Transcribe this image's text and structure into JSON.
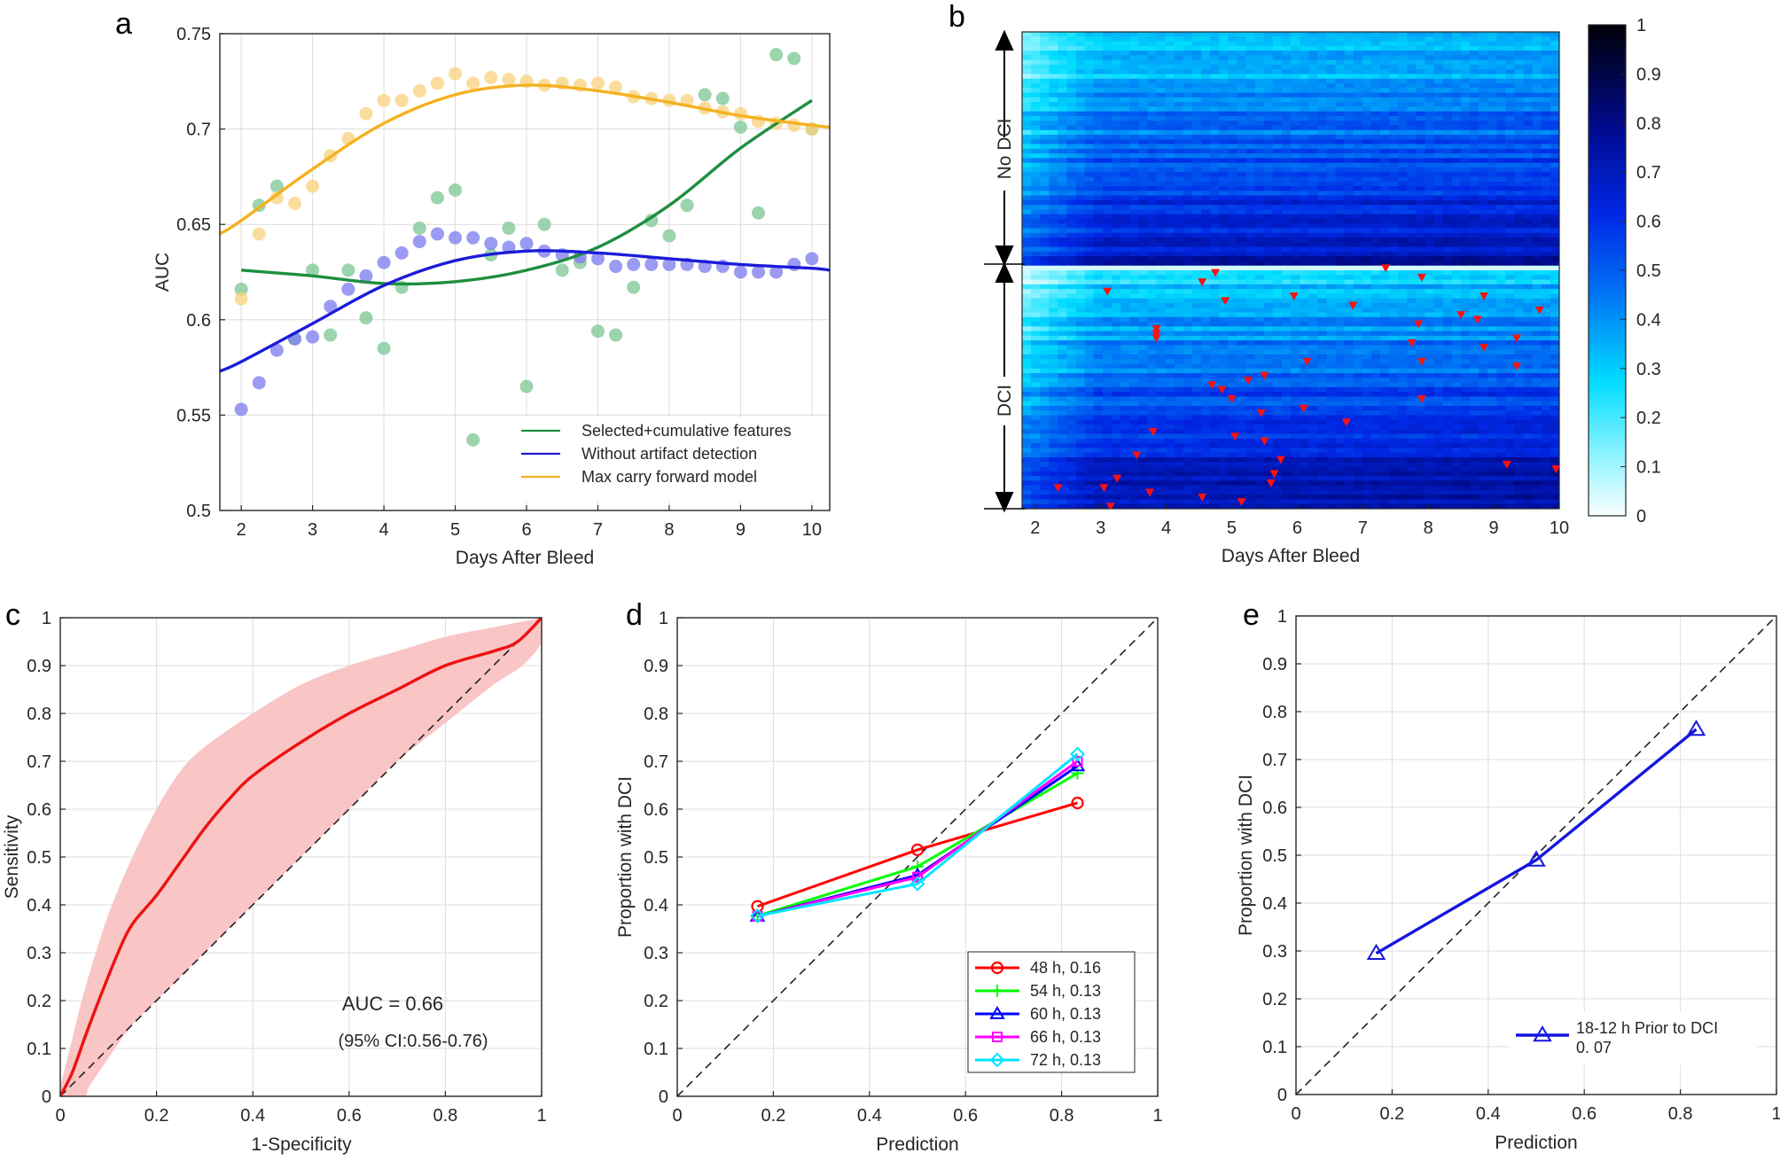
{
  "chart_data": [
    {
      "panel": "a",
      "type": "scatter",
      "xlabel": "Days After Bleed",
      "ylabel": "AUC",
      "xlim": [
        1.7,
        10.25
      ],
      "ylim": [
        0.5,
        0.75
      ],
      "xticks": [
        2,
        3,
        4,
        5,
        6,
        7,
        8,
        9,
        10
      ],
      "yticks": [
        0.5,
        0.55,
        0.6,
        0.65,
        0.7,
        0.75
      ],
      "grid": true,
      "legend_position": "bottom-right",
      "series": [
        {
          "name": "Selected+cumulative features",
          "color": "#1e8f3e",
          "points": [
            [
              2,
              0.616
            ],
            [
              2.25,
              0.66
            ],
            [
              2.5,
              0.67
            ],
            [
              2.75,
              0.59
            ],
            [
              3,
              0.626
            ],
            [
              3.25,
              0.592
            ],
            [
              3.5,
              0.626
            ],
            [
              3.75,
              0.601
            ],
            [
              4,
              0.585
            ],
            [
              4.25,
              0.617
            ],
            [
              4.5,
              0.648
            ],
            [
              4.75,
              0.664
            ],
            [
              5,
              0.668
            ],
            [
              5.25,
              0.537
            ],
            [
              5.5,
              0.634
            ],
            [
              5.75,
              0.648
            ],
            [
              6,
              0.565
            ],
            [
              6.25,
              0.65
            ],
            [
              6.5,
              0.626
            ],
            [
              6.75,
              0.63
            ],
            [
              7,
              0.594
            ],
            [
              7.25,
              0.592
            ],
            [
              7.5,
              0.617
            ],
            [
              7.75,
              0.652
            ],
            [
              8,
              0.644
            ],
            [
              8.25,
              0.66
            ],
            [
              8.5,
              0.718
            ],
            [
              8.75,
              0.716
            ],
            [
              9,
              0.701
            ],
            [
              9.25,
              0.656
            ],
            [
              9.5,
              0.739
            ],
            [
              9.75,
              0.737
            ],
            [
              10,
              0.7
            ]
          ],
          "fit": [
            [
              2,
              0.626
            ],
            [
              3,
              0.623
            ],
            [
              4,
              0.619
            ],
            [
              5,
              0.62
            ],
            [
              6,
              0.626
            ],
            [
              7,
              0.638
            ],
            [
              8,
              0.66
            ],
            [
              9,
              0.69
            ],
            [
              10,
              0.715
            ]
          ]
        },
        {
          "name": "Without artifact detection",
          "color": "#1c1cd9",
          "points": [
            [
              2,
              0.553
            ],
            [
              2.25,
              0.567
            ],
            [
              2.5,
              0.584
            ],
            [
              2.75,
              0.59
            ],
            [
              3,
              0.591
            ],
            [
              3.25,
              0.607
            ],
            [
              3.5,
              0.616
            ],
            [
              3.75,
              0.623
            ],
            [
              4,
              0.63
            ],
            [
              4.25,
              0.635
            ],
            [
              4.5,
              0.641
            ],
            [
              4.75,
              0.645
            ],
            [
              5,
              0.643
            ],
            [
              5.25,
              0.643
            ],
            [
              5.5,
              0.64
            ],
            [
              5.75,
              0.638
            ],
            [
              6,
              0.64
            ],
            [
              6.25,
              0.636
            ],
            [
              6.5,
              0.634
            ],
            [
              6.75,
              0.633
            ],
            [
              7,
              0.632
            ],
            [
              7.25,
              0.628
            ],
            [
              7.5,
              0.629
            ],
            [
              7.75,
              0.629
            ],
            [
              8,
              0.629
            ],
            [
              8.25,
              0.629
            ],
            [
              8.5,
              0.628
            ],
            [
              8.75,
              0.628
            ],
            [
              9,
              0.625
            ],
            [
              9.25,
              0.625
            ],
            [
              9.5,
              0.625
            ],
            [
              9.75,
              0.629
            ],
            [
              10,
              0.632
            ]
          ],
          "fit": [
            [
              1.7,
              0.573
            ],
            [
              2,
              0.578
            ],
            [
              3,
              0.598
            ],
            [
              4,
              0.618
            ],
            [
              5,
              0.631
            ],
            [
              6,
              0.636
            ],
            [
              7,
              0.635
            ],
            [
              8,
              0.632
            ],
            [
              9,
              0.629
            ],
            [
              10,
              0.627
            ],
            [
              10.25,
              0.626
            ]
          ]
        },
        {
          "name": "Max carry forward model",
          "color": "#f5b120",
          "points": [
            [
              2,
              0.611
            ],
            [
              2.25,
              0.645
            ],
            [
              2.5,
              0.664
            ],
            [
              2.75,
              0.661
            ],
            [
              3,
              0.67
            ],
            [
              3.25,
              0.686
            ],
            [
              3.5,
              0.695
            ],
            [
              3.75,
              0.708
            ],
            [
              4,
              0.715
            ],
            [
              4.25,
              0.715
            ],
            [
              4.5,
              0.72
            ],
            [
              4.75,
              0.724
            ],
            [
              5,
              0.729
            ],
            [
              5.25,
              0.724
            ],
            [
              5.5,
              0.727
            ],
            [
              5.75,
              0.726
            ],
            [
              6,
              0.725
            ],
            [
              6.25,
              0.723
            ],
            [
              6.5,
              0.724
            ],
            [
              6.75,
              0.723
            ],
            [
              7,
              0.724
            ],
            [
              7.25,
              0.722
            ],
            [
              7.5,
              0.717
            ],
            [
              7.75,
              0.716
            ],
            [
              8,
              0.715
            ],
            [
              8.25,
              0.715
            ],
            [
              8.5,
              0.711
            ],
            [
              8.75,
              0.709
            ],
            [
              9,
              0.708
            ],
            [
              9.25,
              0.704
            ],
            [
              9.5,
              0.703
            ],
            [
              9.75,
              0.702
            ],
            [
              10,
              0.7
            ]
          ],
          "fit": [
            [
              1.7,
              0.645
            ],
            [
              2,
              0.652
            ],
            [
              3,
              0.679
            ],
            [
              4,
              0.703
            ],
            [
              5,
              0.718
            ],
            [
              6,
              0.723
            ],
            [
              7,
              0.72
            ],
            [
              8,
              0.714
            ],
            [
              9,
              0.707
            ],
            [
              10,
              0.702
            ],
            [
              10.25,
              0.701
            ]
          ]
        }
      ]
    },
    {
      "panel": "b",
      "type": "heatmap",
      "xlabel": "Days After Bleed",
      "xlim": [
        1.8,
        10
      ],
      "xticks": [
        2,
        3,
        4,
        5,
        6,
        7,
        8,
        9,
        10
      ],
      "colorbar_ticks": [
        0,
        0.1,
        0.2,
        0.3,
        0.4,
        0.5,
        0.6,
        0.7,
        0.8,
        0.9,
        1
      ],
      "group_labels": [
        "No DCI",
        "DCI"
      ],
      "rows_no_dci": 50,
      "rows_dci": 52,
      "events": [
        [
          7.35,
          0
        ],
        [
          4.75,
          1
        ],
        [
          7.9,
          2
        ],
        [
          4.55,
          3
        ],
        [
          3.1,
          5
        ],
        [
          5.95,
          6
        ],
        [
          4.9,
          7
        ],
        [
          6.85,
          8
        ],
        [
          8.85,
          6
        ],
        [
          9.7,
          9
        ],
        [
          8.5,
          10
        ],
        [
          8.75,
          11
        ],
        [
          7.85,
          12
        ],
        [
          3.85,
          13
        ],
        [
          3.85,
          14
        ],
        [
          3.85,
          15
        ],
        [
          9.35,
          15
        ],
        [
          7.75,
          16
        ],
        [
          8.85,
          17
        ],
        [
          6.15,
          20
        ],
        [
          7.9,
          20
        ],
        [
          9.35,
          21
        ],
        [
          5.5,
          23
        ],
        [
          5.25,
          24
        ],
        [
          4.7,
          25
        ],
        [
          4.85,
          26
        ],
        [
          5,
          28
        ],
        [
          7.9,
          28
        ],
        [
          6.1,
          30
        ],
        [
          5.45,
          31
        ],
        [
          6.75,
          33
        ],
        [
          3.8,
          35
        ],
        [
          5.05,
          36
        ],
        [
          5.5,
          37
        ],
        [
          3.55,
          40
        ],
        [
          5.75,
          41
        ],
        [
          9.2,
          42
        ],
        [
          9.95,
          43
        ],
        [
          5.65,
          44
        ],
        [
          5.6,
          46
        ],
        [
          3.25,
          45
        ],
        [
          2.35,
          47
        ],
        [
          3.05,
          47
        ],
        [
          3.75,
          48
        ],
        [
          4.55,
          49
        ],
        [
          5.15,
          50
        ],
        [
          3.15,
          51
        ]
      ]
    },
    {
      "panel": "c",
      "type": "line",
      "xlabel": "1-Specificity",
      "ylabel": "Sensitivity",
      "xlim": [
        0,
        1
      ],
      "ylim": [
        0,
        1
      ],
      "xticks": [
        0,
        0.2,
        0.4,
        0.6,
        0.8,
        1
      ],
      "yticks": [
        0,
        0.1,
        0.2,
        0.3,
        0.4,
        0.5,
        0.6,
        0.7,
        0.8,
        0.9,
        1
      ],
      "annotation": "AUC = 0.66",
      "annotation2": "(95% CI:0.56-0.76)",
      "roc": [
        [
          0,
          0
        ],
        [
          0.025,
          0.05
        ],
        [
          0.05,
          0.12
        ],
        [
          0.08,
          0.2
        ],
        [
          0.12,
          0.3
        ],
        [
          0.15,
          0.36
        ],
        [
          0.2,
          0.42
        ],
        [
          0.25,
          0.49
        ],
        [
          0.3,
          0.56
        ],
        [
          0.35,
          0.62
        ],
        [
          0.4,
          0.67
        ],
        [
          0.5,
          0.74
        ],
        [
          0.6,
          0.8
        ],
        [
          0.7,
          0.85
        ],
        [
          0.8,
          0.9
        ],
        [
          0.9,
          0.93
        ],
        [
          0.95,
          0.95
        ],
        [
          1,
          1
        ]
      ],
      "ci_upper": [
        [
          0,
          0.02
        ],
        [
          0.02,
          0.1
        ],
        [
          0.05,
          0.22
        ],
        [
          0.1,
          0.38
        ],
        [
          0.15,
          0.5
        ],
        [
          0.2,
          0.6
        ],
        [
          0.25,
          0.68
        ],
        [
          0.3,
          0.73
        ],
        [
          0.4,
          0.8
        ],
        [
          0.5,
          0.86
        ],
        [
          0.6,
          0.9
        ],
        [
          0.7,
          0.93
        ],
        [
          0.8,
          0.96
        ],
        [
          0.9,
          0.98
        ],
        [
          1,
          1
        ]
      ],
      "ci_lower": [
        [
          1,
          1
        ],
        [
          1,
          0.95
        ],
        [
          0.96,
          0.9
        ],
        [
          0.9,
          0.86
        ],
        [
          0.8,
          0.78
        ],
        [
          0.7,
          0.7
        ],
        [
          0.6,
          0.6
        ],
        [
          0.5,
          0.5
        ],
        [
          0.4,
          0.4
        ],
        [
          0.3,
          0.3
        ],
        [
          0.2,
          0.2
        ],
        [
          0.15,
          0.15
        ],
        [
          0.1,
          0.08
        ],
        [
          0.06,
          0.02
        ],
        [
          0.05,
          0
        ],
        [
          0,
          0
        ]
      ]
    },
    {
      "panel": "d",
      "type": "line",
      "xlabel": "Prediction",
      "ylabel": "Proportion with DCI",
      "xlim": [
        0,
        1
      ],
      "ylim": [
        0,
        1
      ],
      "xticks": [
        0,
        0.2,
        0.4,
        0.6,
        0.8,
        1
      ],
      "yticks": [
        0,
        0.1,
        0.2,
        0.3,
        0.4,
        0.5,
        0.6,
        0.7,
        0.8,
        0.9,
        1
      ],
      "legend_position": "bottom-right",
      "series": [
        {
          "name": "48 h, 0.16",
          "color": "#ff0000",
          "marker": "circle",
          "points": [
            [
              0.167,
              0.397
            ],
            [
              0.5,
              0.515
            ],
            [
              0.833,
              0.613
            ]
          ]
        },
        {
          "name": "54 h, 0.13",
          "color": "#00ff00",
          "marker": "plus",
          "points": [
            [
              0.167,
              0.377
            ],
            [
              0.5,
              0.48
            ],
            [
              0.833,
              0.675
            ]
          ]
        },
        {
          "name": "60 h, 0.13",
          "color": "#0000ff",
          "marker": "triangle",
          "points": [
            [
              0.167,
              0.376
            ],
            [
              0.5,
              0.462
            ],
            [
              0.833,
              0.69
            ]
          ]
        },
        {
          "name": "66 h, 0.13",
          "color": "#ff00ff",
          "marker": "square",
          "points": [
            [
              0.167,
              0.376
            ],
            [
              0.5,
              0.458
            ],
            [
              0.833,
              0.7
            ]
          ]
        },
        {
          "name": "72 h, 0.13",
          "color": "#00e5ff",
          "marker": "diamond",
          "points": [
            [
              0.167,
              0.377
            ],
            [
              0.5,
              0.444
            ],
            [
              0.833,
              0.715
            ]
          ]
        }
      ]
    },
    {
      "panel": "e",
      "type": "line",
      "xlabel": "Prediction",
      "ylabel": "Proportion with DCI",
      "xlim": [
        0,
        1
      ],
      "ylim": [
        0,
        1
      ],
      "xticks": [
        0,
        0.2,
        0.4,
        0.6,
        0.8,
        1
      ],
      "yticks": [
        0,
        0.1,
        0.2,
        0.3,
        0.4,
        0.5,
        0.6,
        0.7,
        0.8,
        0.9,
        1
      ],
      "legend_position": "bottom-right",
      "series": [
        {
          "name": "18-12 h Prior to DCI",
          "name2": "0. 07",
          "color": "#1515e0",
          "marker": "triangle",
          "points": [
            [
              0.167,
              0.295
            ],
            [
              0.5,
              0.49
            ],
            [
              0.833,
              0.763
            ]
          ]
        }
      ]
    }
  ]
}
